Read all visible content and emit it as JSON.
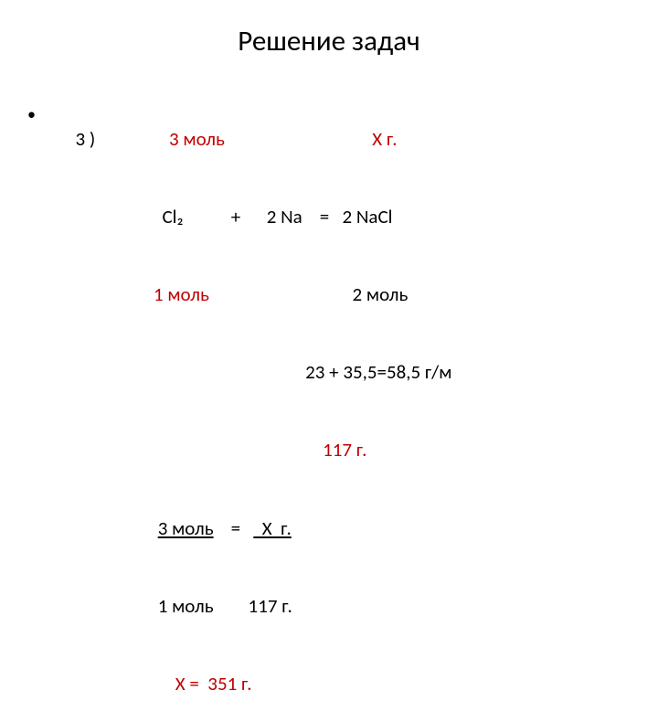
{
  "title": "Решение задач",
  "colors": {
    "text": "#000000",
    "accent": "#c00000",
    "background": "#ffffff"
  },
  "fontsizes": {
    "title": 31,
    "body": 21
  },
  "bullet": "•",
  "task_number": "3 )",
  "line1": {
    "a": "3 моль",
    "b": "Х г."
  },
  "line2": {
    "cl": "Cl₂",
    "plus": "+",
    "na": "2 Na",
    "eq": "=",
    "nacl": "2 NaCl"
  },
  "line3": {
    "a": "1 моль",
    "b": "2 моль"
  },
  "line4": "23 + 35,5=58,5 г/м",
  "line5": "117 г.",
  "line6": {
    "a": "3 моль",
    "eq": "=",
    "b": "  Х  г."
  },
  "line7": {
    "a": "1 моль",
    "b": "117 г."
  },
  "line8": {
    "a": "Х = ",
    "b": " 351 г."
  }
}
